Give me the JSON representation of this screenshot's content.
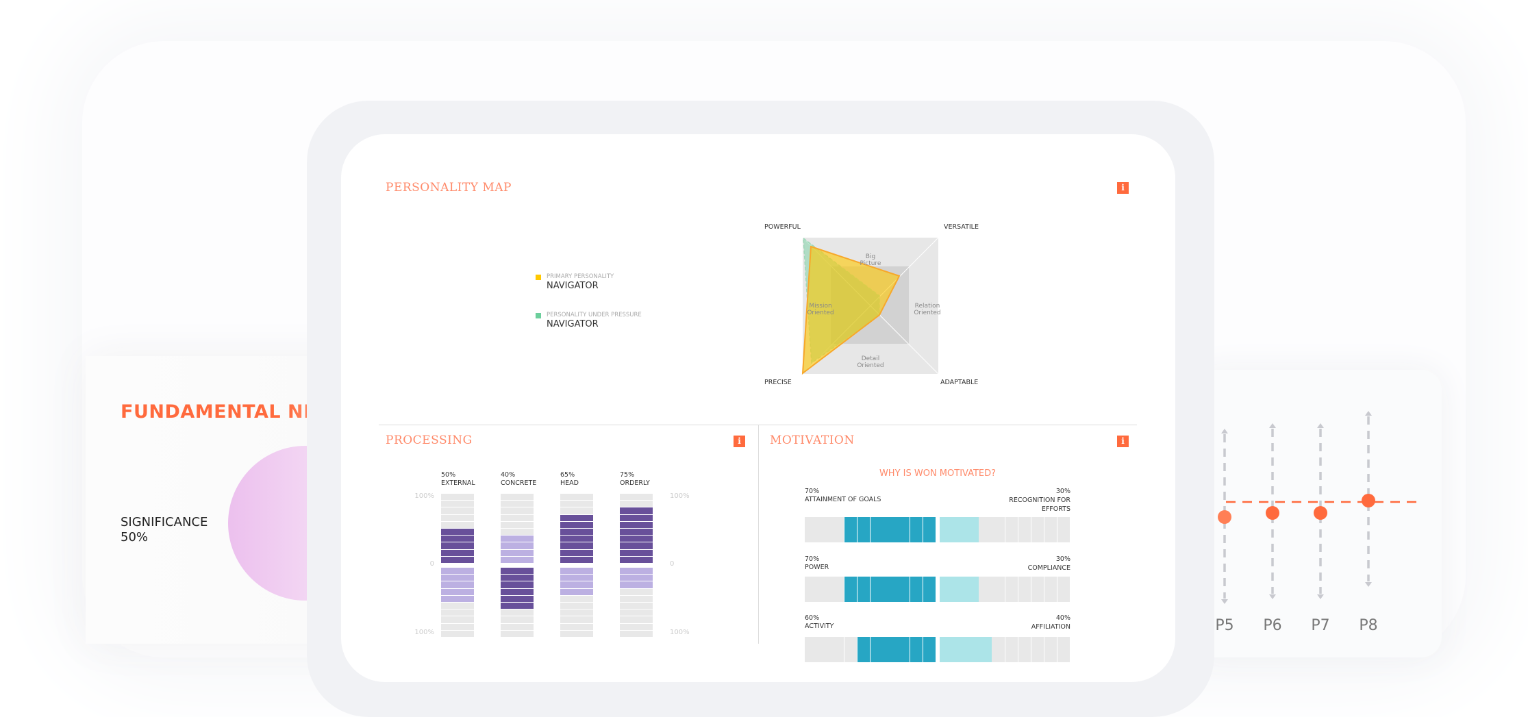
{
  "fundamental_needs": {
    "title": "FUNDAMENTAL NEEDS",
    "item_label": "SIGNIFICANCE",
    "item_value": "50%"
  },
  "personality_map": {
    "title": "PERSONALITY MAP",
    "info_icon": "i",
    "legend": [
      {
        "label": "PRIMARY PERSONALITY",
        "value": "NAVIGATOR",
        "color": "#ffc800"
      },
      {
        "label": "PERSONALITY UNDER PRESSURE",
        "value": "NAVIGATOR",
        "color": "#6ccf9c"
      }
    ],
    "corners": {
      "top_left": "POWERFUL",
      "top_right": "VERSATILE",
      "bottom_left": "PRECISE",
      "bottom_right": "ADAPTABLE"
    },
    "quadrants": {
      "top": "Big Picture",
      "right": "Relation Oriented",
      "bottom": "Detail Oriented",
      "left": "Mission Oriented"
    }
  },
  "processing": {
    "title": "PROCESSING",
    "info_icon": "i",
    "axis": {
      "top": "100%",
      "mid": "0",
      "bottom": "100%"
    },
    "columns": [
      {
        "pct": "50%",
        "label": "EXTERNAL",
        "value": 50
      },
      {
        "pct": "40%",
        "label": "CONCRETE",
        "value": 40
      },
      {
        "pct": "65%",
        "label": "HEAD",
        "value": 65
      },
      {
        "pct": "75%",
        "label": "ORDERLY",
        "value": 75
      }
    ],
    "colors": {
      "dark": "#68509a",
      "light": "#bcb0e2",
      "empty": "#e8e8e8"
    }
  },
  "motivation": {
    "title": "MOTIVATION",
    "info_icon": "i",
    "question": "WHY IS WON MOTIVATED?",
    "rows": [
      {
        "left_pct": "70%",
        "left_label": "ATTAINMENT OF GOALS",
        "right_pct": "30%",
        "right_label": "RECOGNITION FOR EFFORTS",
        "left_value": 70
      },
      {
        "left_pct": "70%",
        "left_label": "POWER",
        "right_pct": "30%",
        "right_label": "COMPLIANCE",
        "left_value": 70
      },
      {
        "left_pct": "60%",
        "left_label": "ACTIVITY",
        "right_pct": "40%",
        "right_label": "AFFILIATION",
        "left_value": 60
      }
    ],
    "colors": {
      "dark": "#27a6c4",
      "light": "#ace4e8",
      "empty": "#e8e8e8"
    }
  },
  "p_chart": {
    "labels": [
      "P5",
      "P6",
      "P7",
      "P8"
    ],
    "accent": "#ff6a3d"
  }
}
